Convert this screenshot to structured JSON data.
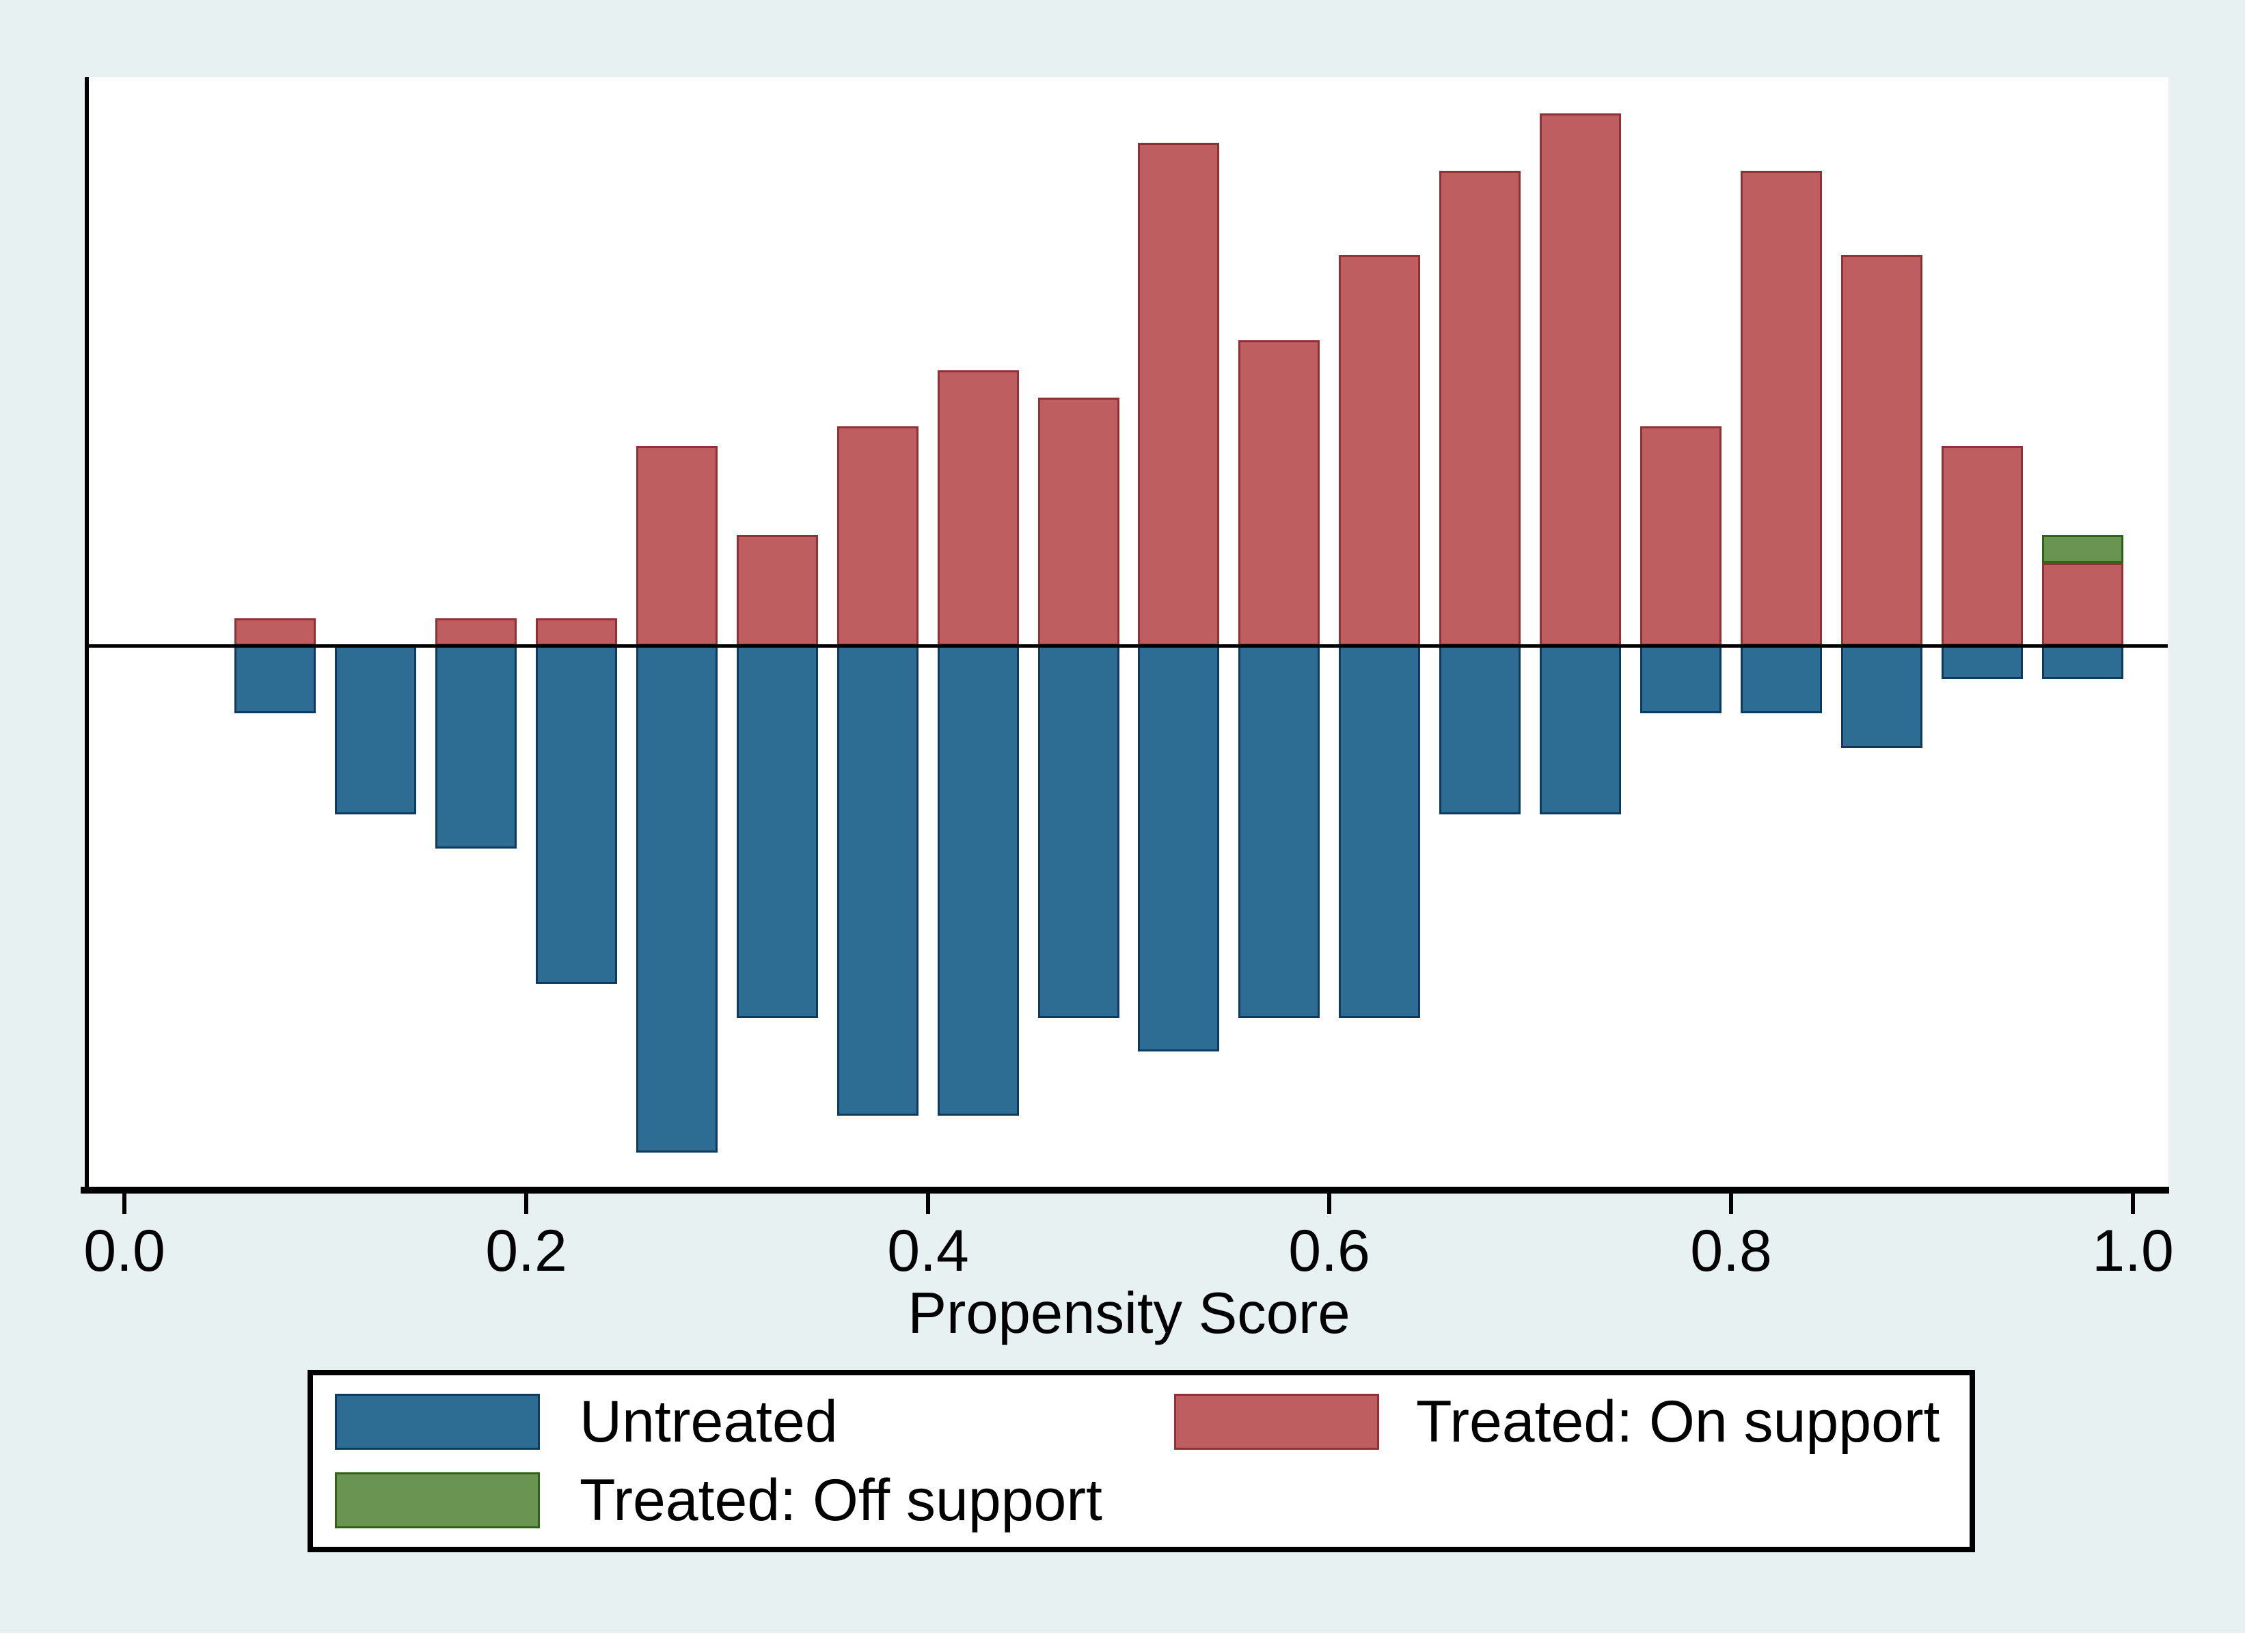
{
  "chart_data": {
    "type": "bar",
    "subtype": "diverging-histogram (Stata psgraph common-support plot)",
    "title": "",
    "xlabel": "Propensity Score",
    "ylabel": "",
    "x_range": [
      0.0,
      1.0
    ],
    "x_ticks": [
      "0.0",
      "0.2",
      "0.4",
      "0.6",
      "0.8",
      "1.0"
    ],
    "x_tick_values": [
      0.0,
      0.2,
      0.4,
      0.6,
      0.8,
      1.0
    ],
    "bin_width": 0.05,
    "grid": false,
    "y_axis_labels_shown": false,
    "units": "bar heights in source-screenshot pixels (no numeric y scale is shown in the figure); treated bars extend up from the zero line, untreated bars extend down",
    "legend_position": "bottom box, 2 columns",
    "legend": [
      {
        "label": "Untreated",
        "color": "#2D6D94"
      },
      {
        "label": "Treated: On support",
        "color": "#BF5E60"
      },
      {
        "label": "Treated: Off support",
        "color": "#6A9451"
      }
    ],
    "bins": [
      {
        "center": 0.075,
        "treated_on": 40,
        "treated_off": 0,
        "untreated": 99
      },
      {
        "center": 0.125,
        "treated_on": 0,
        "treated_off": 0,
        "untreated": 247
      },
      {
        "center": 0.175,
        "treated_on": 40,
        "treated_off": 0,
        "untreated": 297
      },
      {
        "center": 0.225,
        "treated_on": 40,
        "treated_off": 0,
        "untreated": 495
      },
      {
        "center": 0.275,
        "treated_on": 292,
        "treated_off": 0,
        "untreated": 742
      },
      {
        "center": 0.325,
        "treated_on": 162,
        "treated_off": 0,
        "untreated": 545
      },
      {
        "center": 0.375,
        "treated_on": 321,
        "treated_off": 0,
        "untreated": 688
      },
      {
        "center": 0.425,
        "treated_on": 403,
        "treated_off": 0,
        "untreated": 688
      },
      {
        "center": 0.475,
        "treated_on": 363,
        "treated_off": 0,
        "untreated": 545
      },
      {
        "center": 0.525,
        "treated_on": 736,
        "treated_off": 0,
        "untreated": 594
      },
      {
        "center": 0.575,
        "treated_on": 447,
        "treated_off": 0,
        "untreated": 545
      },
      {
        "center": 0.625,
        "treated_on": 572,
        "treated_off": 0,
        "untreated": 545
      },
      {
        "center": 0.675,
        "treated_on": 695,
        "treated_off": 0,
        "untreated": 247
      },
      {
        "center": 0.725,
        "treated_on": 779,
        "treated_off": 0,
        "untreated": 247
      },
      {
        "center": 0.775,
        "treated_on": 321,
        "treated_off": 0,
        "untreated": 99
      },
      {
        "center": 0.825,
        "treated_on": 695,
        "treated_off": 0,
        "untreated": 99
      },
      {
        "center": 0.875,
        "treated_on": 572,
        "treated_off": 0,
        "untreated": 150
      },
      {
        "center": 0.925,
        "treated_on": 292,
        "treated_off": 0,
        "untreated": 49
      },
      {
        "center": 0.975,
        "treated_on": 121,
        "treated_off": 41,
        "untreated": 49
      }
    ]
  },
  "colors": {
    "background": "#E8F1F2",
    "plot_background": "#ffffff",
    "axis": "#000000",
    "untreated_fill": "#2D6D94",
    "untreated_border": "#0E3A5F",
    "treated_on_fill": "#BF5E60",
    "treated_on_border": "#8F3135",
    "treated_off_fill": "#6A9451",
    "treated_off_border": "#2F6414",
    "legend_background": "#ffffff",
    "legend_border": "#000000"
  }
}
